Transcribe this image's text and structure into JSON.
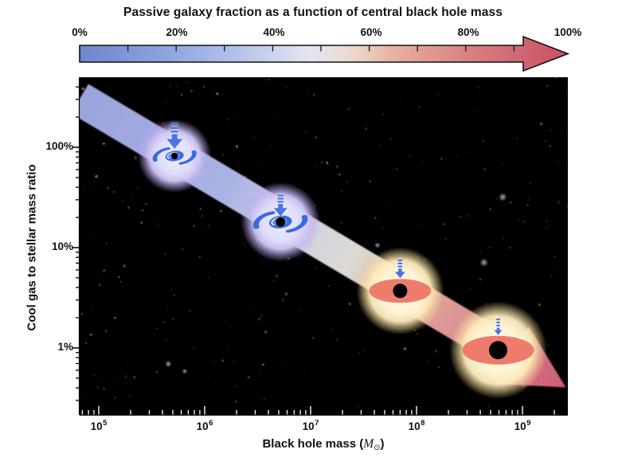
{
  "title": "Passive galaxy fraction as a function of central black hole mass",
  "colorbar": {
    "labels": [
      "0%",
      "20%",
      "40%",
      "60%",
      "80%",
      "100%"
    ],
    "color_start": "#6f85cf",
    "color_mid": "#e3e6f1",
    "color_end": "#c75064"
  },
  "yaxis": {
    "label": "Cool gas to stellar mass ratio",
    "ticks": [
      "100%",
      "10%",
      "1%"
    ]
  },
  "xaxis": {
    "label": {
      "prefix": "Black hole mass (",
      "symbol": "M",
      "subscript": "⊙",
      "suffix": ")"
    },
    "ticks": [
      {
        "base": "10",
        "exp": "5"
      },
      {
        "base": "10",
        "exp": "6"
      },
      {
        "base": "10",
        "exp": "7"
      },
      {
        "base": "10",
        "exp": "8"
      },
      {
        "base": "10",
        "exp": "9"
      }
    ]
  },
  "chart_data": {
    "type": "scatter",
    "title": "Passive galaxy fraction as a function of central black hole mass",
    "xlabel": "Black hole mass (M⊙)",
    "ylabel": "Cool gas to stellar mass ratio",
    "x_scale": "log",
    "x_ticks": [
      100000.0,
      1000000.0,
      10000000.0,
      100000000.0,
      1000000000.0
    ],
    "xlim": [
      66000.0,
      2900000000.0
    ],
    "y_scale": "log",
    "y_ticks_percent": [
      100,
      10,
      1
    ],
    "ylim_percent": [
      0.21,
      500
    ],
    "grid": false,
    "colorbar": {
      "label": "Passive galaxy fraction",
      "min_label": "0%",
      "max_label": "100%",
      "tick_interval_percent": 20,
      "low_color": "#6f85cf",
      "high_color": "#c75064"
    },
    "trend_band": {
      "start": {
        "bh_mass_msun": 66000.0,
        "gas_ratio_percent": 330
      },
      "end": {
        "bh_mass_msun": 2900000000.0,
        "gas_ratio_percent": 0.33
      },
      "meaning": "band colored from blue (0% passive) to red (100% passive) as black hole mass grows"
    },
    "galaxies": [
      {
        "morphology": "spiral",
        "bh_mass_msun": 520000.0,
        "gas_to_stellar_percent": 82,
        "inflow_arrow": "large"
      },
      {
        "morphology": "spiral",
        "bh_mass_msun": 5200000.0,
        "gas_to_stellar_percent": 18,
        "inflow_arrow": "large"
      },
      {
        "morphology": "elliptical",
        "bh_mass_msun": 70000000.0,
        "gas_to_stellar_percent": 3.7,
        "inflow_arrow": "small"
      },
      {
        "morphology": "elliptical",
        "bh_mass_msun": 590000000.0,
        "gas_to_stellar_percent": 0.95,
        "inflow_arrow": "small"
      }
    ]
  }
}
